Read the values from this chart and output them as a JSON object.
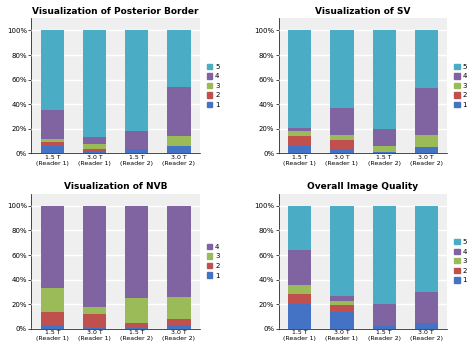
{
  "colors": {
    "1": "#4472C4",
    "2": "#C0504D",
    "3": "#9BBB59",
    "4": "#8064A2",
    "5": "#4BACC6"
  },
  "charts": [
    {
      "title": "Visualization of Posterior Border",
      "color_order": [
        "1",
        "2",
        "3",
        "4",
        "5"
      ],
      "bars": [
        {
          "name": "1.5 T\n(Reader 1)",
          "values": {
            "1": 6,
            "2": 3,
            "3": 3,
            "4": 23,
            "5": 65
          }
        },
        {
          "name": "3.0 T\n(Reader 1)",
          "values": {
            "1": 2,
            "2": 2,
            "3": 4,
            "4": 5,
            "5": 87
          }
        },
        {
          "name": "1.5 T\n(Reader 2)",
          "values": {
            "1": 4,
            "2": 0,
            "3": 0,
            "4": 14,
            "5": 82
          }
        },
        {
          "name": "3.0 T\n(Reader 2)",
          "values": {
            "1": 6,
            "2": 0,
            "3": 8,
            "4": 40,
            "5": 46
          }
        }
      ]
    },
    {
      "title": "Visualization of SV",
      "color_order": [
        "1",
        "2",
        "3",
        "4",
        "5"
      ],
      "bars": [
        {
          "name": "1.5 T\n(Reader 1)",
          "values": {
            "1": 6,
            "2": 8,
            "3": 4,
            "4": 3,
            "5": 79
          }
        },
        {
          "name": "3.0 T\n(Reader 1)",
          "values": {
            "1": 3,
            "2": 8,
            "3": 4,
            "4": 22,
            "5": 63
          }
        },
        {
          "name": "1.5 T\n(Reader 2)",
          "values": {
            "1": 1,
            "2": 0,
            "3": 5,
            "4": 14,
            "5": 80
          }
        },
        {
          "name": "3.0 T\n(Reader 2)",
          "values": {
            "1": 5,
            "2": 0,
            "3": 10,
            "4": 38,
            "5": 47
          }
        }
      ]
    },
    {
      "title": "Visualization of NVB",
      "color_order": [
        "1",
        "2",
        "3",
        "4"
      ],
      "bars": [
        {
          "name": "1.5 T\n(Reader 1)",
          "values": {
            "1": 3,
            "2": 11,
            "3": 19,
            "4": 67
          }
        },
        {
          "name": "3.0 T\n(Reader 1)",
          "values": {
            "1": 1,
            "2": 11,
            "3": 6,
            "4": 82
          }
        },
        {
          "name": "1.5 T\n(Reader 2)",
          "values": {
            "1": 1,
            "2": 4,
            "3": 20,
            "4": 75
          }
        },
        {
          "name": "3.0 T\n(Reader 2)",
          "values": {
            "1": 3,
            "2": 5,
            "3": 18,
            "4": 74
          }
        }
      ]
    },
    {
      "title": "Overall Image Quality",
      "color_order": [
        "1",
        "2",
        "3",
        "4",
        "5"
      ],
      "bars": [
        {
          "name": "1.5 T\n(Reader 1)",
          "values": {
            "1": 20,
            "2": 8,
            "3": 8,
            "4": 28,
            "5": 36
          }
        },
        {
          "name": "3.0 T\n(Reader 1)",
          "values": {
            "1": 14,
            "2": 5,
            "3": 4,
            "4": 4,
            "5": 73
          }
        },
        {
          "name": "1.5 T\n(Reader 2)",
          "values": {
            "1": 2,
            "2": 0,
            "3": 0,
            "4": 18,
            "5": 80
          }
        },
        {
          "name": "3.0 T\n(Reader 2)",
          "values": {
            "1": 5,
            "2": 0,
            "3": 0,
            "4": 25,
            "5": 70
          }
        }
      ]
    }
  ],
  "background_color": "#EFEFEF"
}
